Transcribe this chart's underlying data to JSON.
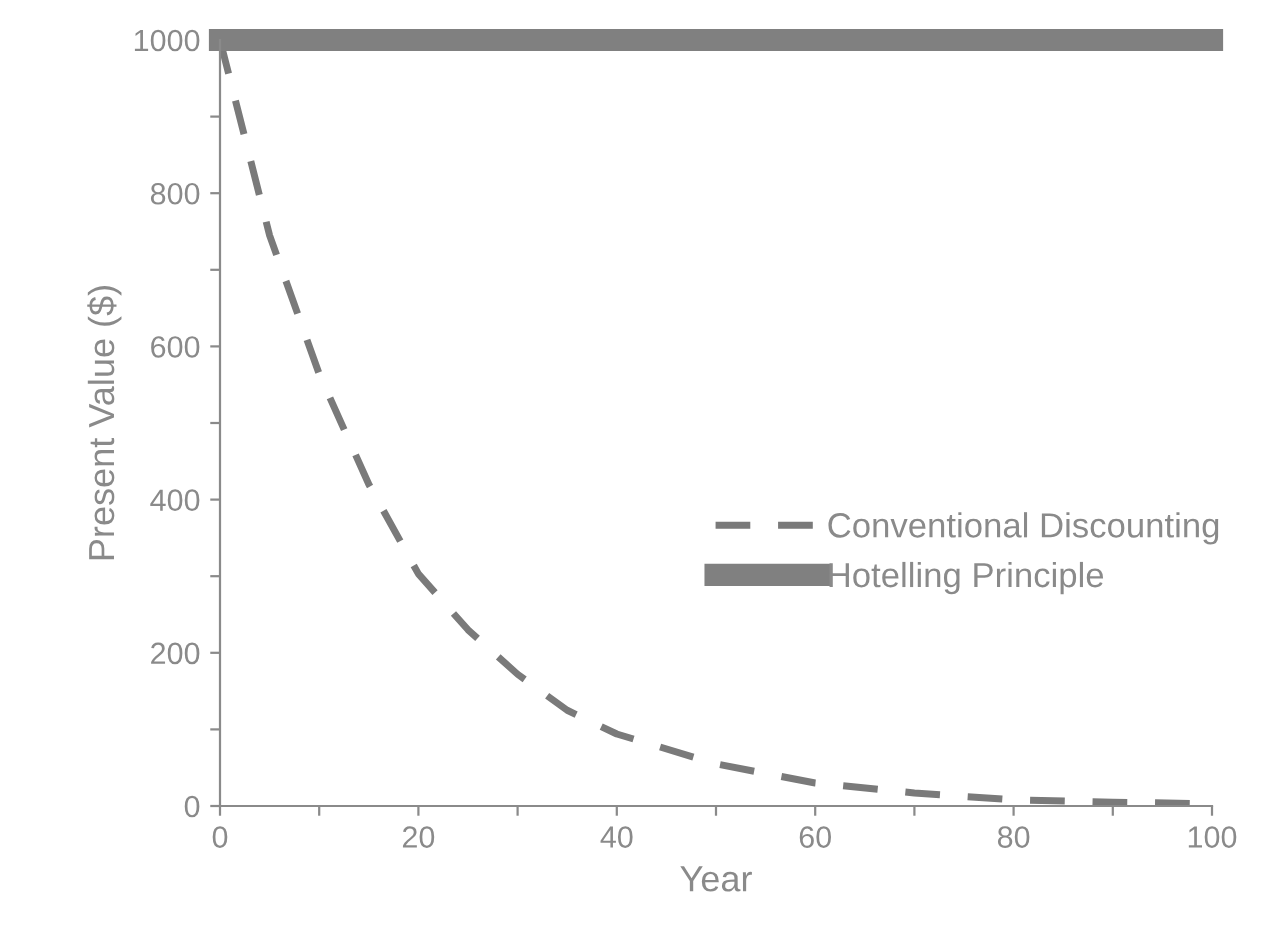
{
  "chart_data": {
    "type": "line",
    "xlabel": "Year",
    "ylabel": "Present Value ($)",
    "xlim": [
      0,
      100
    ],
    "ylim": [
      0,
      1000
    ],
    "xticks": [
      0,
      {
        "value": 10,
        "label": null
      },
      20,
      {
        "value": 30,
        "label": null
      },
      40,
      {
        "value": 50,
        "label": null
      },
      60,
      {
        "value": 70,
        "label": null
      },
      80,
      {
        "value": 90,
        "label": null
      },
      100
    ],
    "yticks": [
      0,
      {
        "value": 100,
        "label": null
      },
      200,
      {
        "value": 300,
        "label": null
      },
      400,
      {
        "value": 500,
        "label": null
      },
      600,
      {
        "value": 700,
        "label": null
      },
      800,
      {
        "value": 900,
        "label": null
      },
      1000
    ],
    "legend": "right",
    "grid": false,
    "series": [
      {
        "name": "Conventional Discounting",
        "color": "#7a7a7a",
        "line_style": "dashed",
        "x": [
          0,
          1.4,
          5,
          10,
          15,
          20,
          25,
          30,
          35,
          40,
          50,
          60,
          70,
          80,
          90,
          100
        ],
        "values": [
          1000,
          929,
          745,
          564,
          420,
          303,
          230,
          172,
          125,
          94,
          55,
          30,
          17,
          8,
          5,
          3
        ]
      },
      {
        "name": "Hotelling Principle",
        "color": "#808080",
        "line_style": "solid",
        "x": [
          0,
          100
        ],
        "values": [
          1000,
          1000
        ]
      }
    ]
  }
}
